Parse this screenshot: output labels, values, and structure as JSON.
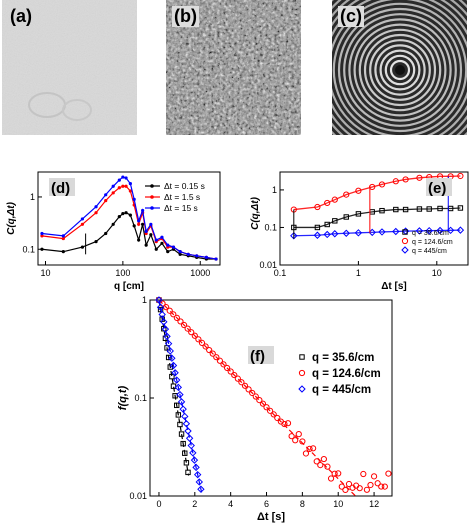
{
  "panels": {
    "a": {
      "label": "(a)"
    },
    "b": {
      "label": "(b)"
    },
    "c": {
      "label": "(c)"
    }
  },
  "chart_data": [
    {
      "panel": "(d)",
      "type": "line",
      "xlabel": "q [cm]",
      "ylabel": "C(q,Δt)",
      "xscale": "log",
      "yscale": "log",
      "xlim": [
        8,
        1800
      ],
      "ylim": [
        0.05,
        3
      ],
      "xticks": [
        "10",
        "100",
        "1000"
      ],
      "yticks": [
        "0.1",
        "1"
      ],
      "legend_position": "top-right",
      "series": [
        {
          "name": "Δt = 0.15 s",
          "color": "#000000",
          "x": [
            9,
            17,
            30,
            45,
            60,
            75,
            90,
            100,
            110,
            125,
            140,
            160,
            180,
            200,
            230,
            270,
            320,
            380,
            450,
            550,
            700,
            900,
            1200,
            1600
          ],
          "y": [
            0.1,
            0.09,
            0.11,
            0.14,
            0.2,
            0.3,
            0.42,
            0.48,
            0.5,
            0.45,
            0.28,
            0.15,
            0.3,
            0.12,
            0.19,
            0.1,
            0.13,
            0.09,
            0.1,
            0.08,
            0.075,
            0.07,
            0.065,
            0.065
          ]
        },
        {
          "name": "Δt = 1.5 s",
          "color": "#ff0000",
          "x": [
            9,
            17,
            30,
            45,
            60,
            75,
            90,
            100,
            110,
            125,
            140,
            160,
            180,
            200,
            230,
            270,
            320,
            380,
            450,
            550,
            700,
            900,
            1200,
            1600
          ],
          "y": [
            0.18,
            0.16,
            0.3,
            0.5,
            0.85,
            1.2,
            1.5,
            1.6,
            1.6,
            1.3,
            0.7,
            0.3,
            0.5,
            0.2,
            0.28,
            0.14,
            0.16,
            0.11,
            0.11,
            0.09,
            0.08,
            0.075,
            0.07,
            0.065
          ]
        },
        {
          "name": "Δt = 15 s",
          "color": "#0000ff",
          "x": [
            9,
            17,
            30,
            45,
            60,
            75,
            90,
            100,
            110,
            125,
            140,
            160,
            180,
            200,
            230,
            270,
            320,
            380,
            450,
            550,
            700,
            900,
            1200,
            1600
          ],
          "y": [
            0.2,
            0.18,
            0.38,
            0.65,
            1.1,
            1.6,
            2.1,
            2.4,
            2.3,
            1.8,
            0.9,
            0.35,
            0.55,
            0.22,
            0.3,
            0.15,
            0.17,
            0.12,
            0.11,
            0.09,
            0.08,
            0.075,
            0.07,
            0.065
          ]
        }
      ]
    },
    {
      "panel": "(e)",
      "type": "scatter",
      "xlabel": "Δt [s]",
      "ylabel": "C(q,Δt)",
      "xscale": "log",
      "yscale": "log",
      "xlim": [
        0.1,
        25
      ],
      "ylim": [
        0.01,
        3
      ],
      "xticks": [
        "0.1",
        "1",
        "10"
      ],
      "yticks": [
        "0.01",
        "0.1",
        "1"
      ],
      "legend_position": "bottom-right",
      "series": [
        {
          "name": "q = 35.6/cm",
          "color": "#000000",
          "marker": "square",
          "x": [
            0.15,
            0.3,
            0.4,
            0.5,
            0.7,
            1.0,
            1.5,
            2.0,
            3.0,
            4.0,
            6.0,
            8.0,
            11.0,
            15.0,
            20.0
          ],
          "y": [
            0.1,
            0.1,
            0.12,
            0.15,
            0.19,
            0.23,
            0.26,
            0.28,
            0.3,
            0.3,
            0.31,
            0.31,
            0.32,
            0.32,
            0.33
          ]
        },
        {
          "name": "q = 124.6/cm",
          "color": "#ff0000",
          "marker": "circle",
          "x": [
            0.15,
            0.3,
            0.4,
            0.5,
            0.7,
            1.0,
            1.5,
            2.0,
            3.0,
            4.0,
            6.0,
            8.0,
            11.0,
            15.0,
            20.0
          ],
          "y": [
            0.3,
            0.35,
            0.45,
            0.55,
            0.75,
            0.95,
            1.2,
            1.4,
            1.7,
            1.9,
            2.1,
            2.2,
            2.3,
            2.3,
            2.35
          ]
        },
        {
          "name": "q = 445/cm",
          "color": "#0000ff",
          "marker": "diamond",
          "x": [
            0.15,
            0.3,
            0.4,
            0.5,
            0.7,
            1.0,
            1.5,
            2.0,
            3.0,
            4.0,
            6.0,
            8.0,
            11.0,
            15.0,
            20.0
          ],
          "y": [
            0.06,
            0.062,
            0.065,
            0.068,
            0.07,
            0.072,
            0.074,
            0.076,
            0.078,
            0.08,
            0.081,
            0.082,
            0.083,
            0.084,
            0.085
          ]
        }
      ]
    },
    {
      "panel": "(f)",
      "type": "scatter",
      "xlabel": "Δt [s]",
      "ylabel": "f(q,t)",
      "xscale": "linear",
      "yscale": "log",
      "xlim": [
        -0.5,
        13
      ],
      "ylim": [
        0.01,
        1
      ],
      "xticks": [
        "0",
        "2",
        "4",
        "6",
        "8",
        "10",
        "12"
      ],
      "yticks": [
        "0.01",
        "0.1",
        "1"
      ],
      "legend_position": "top-right",
      "series": [
        {
          "name": "q = 35.6/cm",
          "color": "#000000",
          "marker": "square",
          "decay_rate": 2.5,
          "x_max": 1.7
        },
        {
          "name": "q = 124.6/cm",
          "color": "#ff0000",
          "marker": "circle",
          "decay_rate": 0.42,
          "x_max": 12.8
        },
        {
          "name": "q = 445/cm",
          "color": "#0000ff",
          "marker": "diamond",
          "decay_rate": 1.9,
          "x_max": 2.4
        }
      ]
    }
  ]
}
